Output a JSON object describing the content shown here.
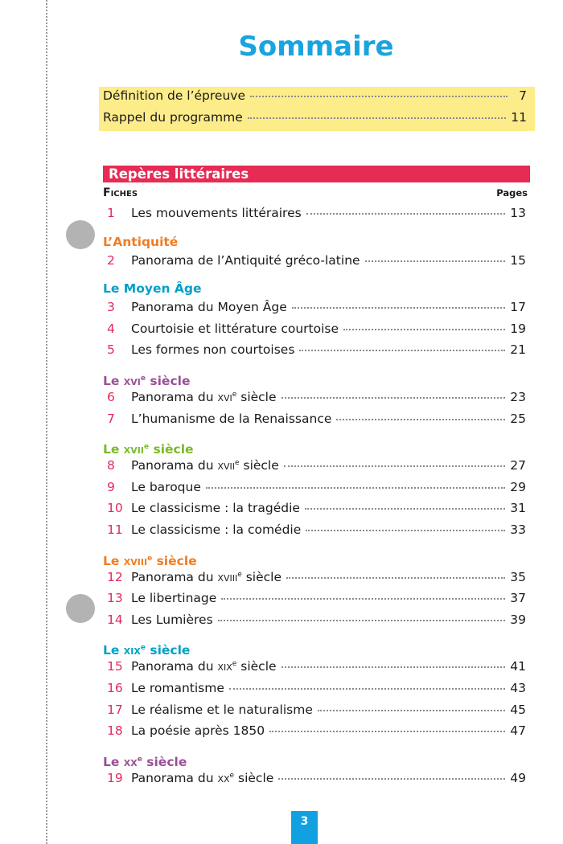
{
  "title": "Sommaire",
  "intro": [
    {
      "label": "Définition de l’épreuve",
      "page": "7"
    },
    {
      "label": "Rappel du programme",
      "page": "11"
    }
  ],
  "section_title": "Repères littéraires",
  "fiches_label": "Fiches",
  "pages_label": "Pages",
  "colors": {
    "title": "#1aa3e0",
    "bar": "#e62b55",
    "highlight": "#fdec8a",
    "number": "#e4295a"
  },
  "groups": [
    {
      "heading": null,
      "color": null,
      "items": [
        {
          "n": "1",
          "pre": "Les mouvements littéraires",
          "page": "13"
        }
      ]
    },
    {
      "heading": {
        "pre": "L’Antiquité"
      },
      "color": "#f07c22",
      "items": [
        {
          "n": "2",
          "pre": "Panorama de l’Antiquité gréco-latine",
          "page": "15"
        }
      ]
    },
    {
      "heading": {
        "pre": "Le Moyen Âge"
      },
      "color": "#00a0c6",
      "items": [
        {
          "n": "3",
          "pre": "Panorama du Moyen Âge",
          "page": "17"
        },
        {
          "n": "4",
          "pre": "Courtoisie et littérature courtoise",
          "page": "19"
        },
        {
          "n": "5",
          "pre": "Les formes non courtoises",
          "page": "21"
        }
      ]
    },
    {
      "heading": {
        "pre": "Le ",
        "sc": "xvi",
        "sup": "e",
        "post": " siècle"
      },
      "color": "#9b4f96",
      "items": [
        {
          "n": "6",
          "pre": "Panorama du ",
          "sc": "xvi",
          "sup": "e",
          "post": " siècle",
          "page": "23"
        },
        {
          "n": "7",
          "pre": "L’humanisme de la Renaissance",
          "page": "25"
        }
      ]
    },
    {
      "heading": {
        "pre": "Le ",
        "sc": "xvii",
        "sup": "e",
        "post": " siècle"
      },
      "color": "#7ab929",
      "items": [
        {
          "n": "8",
          "pre": "Panorama du ",
          "sc": "xvii",
          "sup": "e",
          "post": " siècle",
          "page": "27"
        },
        {
          "n": "9",
          "pre": "Le baroque",
          "page": "29"
        },
        {
          "n": "10",
          "pre": "Le classicisme : la tragédie",
          "page": "31"
        },
        {
          "n": "11",
          "pre": "Le classicisme : la comédie",
          "page": "33"
        }
      ]
    },
    {
      "heading": {
        "pre": "Le ",
        "sc": "xviii",
        "sup": "e",
        "post": " siècle"
      },
      "color": "#f07c22",
      "items": [
        {
          "n": "12",
          "pre": "Panorama du ",
          "sc": "xviii",
          "sup": "e",
          "post": " siècle",
          "page": "35"
        },
        {
          "n": "13",
          "pre": "Le libertinage",
          "page": "37"
        },
        {
          "n": "14",
          "pre": "Les Lumières",
          "page": "39"
        }
      ]
    },
    {
      "heading": {
        "pre": "Le ",
        "sc": "xix",
        "sup": "e",
        "post": " siècle"
      },
      "color": "#00a0c6",
      "items": [
        {
          "n": "15",
          "pre": "Panorama du ",
          "sc": "xix",
          "sup": "e",
          "post": " siècle",
          "page": "41"
        },
        {
          "n": "16",
          "pre": "Le romantisme",
          "page": "43"
        },
        {
          "n": "17",
          "pre": "Le réalisme et le naturalisme",
          "page": "45"
        },
        {
          "n": "18",
          "pre": "La poésie après 1850",
          "page": "47"
        }
      ]
    },
    {
      "heading": {
        "pre": "Le ",
        "sc": "xx",
        "sup": "e",
        "post": " siècle"
      },
      "color": "#9b4f96",
      "items": [
        {
          "n": "19",
          "pre": "Panorama du ",
          "sc": "xx",
          "sup": "e",
          "post": " siècle",
          "page": "49"
        }
      ]
    }
  ],
  "page_number": "3"
}
